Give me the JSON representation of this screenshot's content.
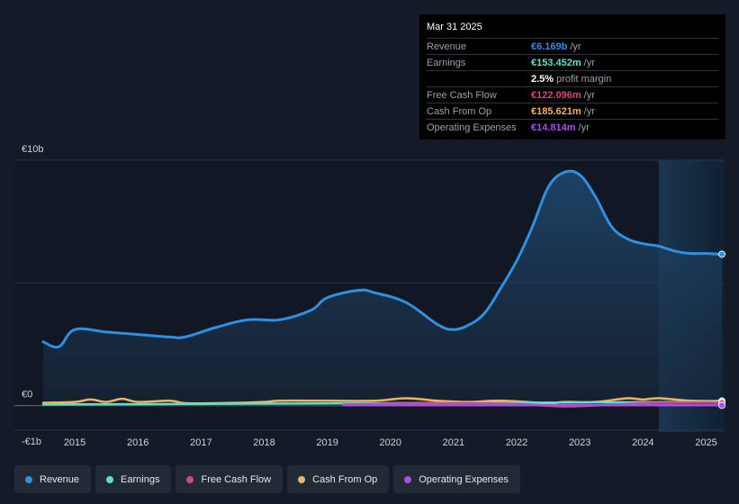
{
  "tooltip": {
    "date": "Mar 31 2025",
    "rows": [
      {
        "label": "Revenue",
        "value": "€6.169b",
        "unit": "/yr",
        "color": "#2e8fe3"
      },
      {
        "label": "Earnings",
        "value": "€153.452m",
        "unit": "/yr",
        "color": "#5fe0c8"
      },
      {
        "label": "",
        "value": "2.5%",
        "unit": "profit margin",
        "color": "#ffffff"
      },
      {
        "label": "Free Cash Flow",
        "value": "€122.096m",
        "unit": "/yr",
        "color": "#d3497a"
      },
      {
        "label": "Cash From Op",
        "value": "€185.621m",
        "unit": "/yr",
        "color": "#f0b35e"
      },
      {
        "label": "Operating Expenses",
        "value": "€14.814m",
        "unit": "/yr",
        "color": "#a64ef0"
      }
    ]
  },
  "legend": [
    {
      "label": "Revenue",
      "color": "#2e8fe3"
    },
    {
      "label": "Earnings",
      "color": "#5fe0c8"
    },
    {
      "label": "Free Cash Flow",
      "color": "#d3497a"
    },
    {
      "label": "Cash From Op",
      "color": "#f0b35e"
    },
    {
      "label": "Operating Expenses",
      "color": "#a64ef0"
    }
  ],
  "chart_data": {
    "type": "area",
    "y_ticks": [
      {
        "value": 10,
        "label": "€10b"
      },
      {
        "value": 0,
        "label": "€0"
      },
      {
        "value": -1,
        "label": "-€1b"
      }
    ],
    "ylim": [
      -1,
      10
    ],
    "xlim": [
      2014.5,
      2025.25
    ],
    "x_ticks": [
      "2015",
      "2016",
      "2017",
      "2018",
      "2019",
      "2020",
      "2021",
      "2022",
      "2023",
      "2024",
      "2025"
    ],
    "forecast_start": 2024.25,
    "series": [
      {
        "name": "Revenue",
        "color": "#2e8fe3",
        "unit": "€b",
        "x": [
          2014.5,
          2014.75,
          2015.0,
          2015.5,
          2016.0,
          2016.5,
          2016.75,
          2017.25,
          2017.75,
          2018.25,
          2018.75,
          2019.0,
          2019.5,
          2019.75,
          2020.25,
          2020.75,
          2021.0,
          2021.25,
          2021.5,
          2021.75,
          2022.0,
          2022.25,
          2022.5,
          2022.75,
          2023.0,
          2023.25,
          2023.5,
          2023.75,
          2024.0,
          2024.25,
          2024.5,
          2024.75,
          2025.0,
          2025.25
        ],
        "values": [
          2.6,
          2.4,
          3.1,
          3.0,
          2.9,
          2.8,
          2.8,
          3.2,
          3.5,
          3.5,
          3.9,
          4.4,
          4.7,
          4.6,
          4.2,
          3.3,
          3.1,
          3.3,
          3.8,
          4.8,
          5.9,
          7.3,
          8.9,
          9.5,
          9.4,
          8.5,
          7.3,
          6.8,
          6.6,
          6.5,
          6.3,
          6.2,
          6.2,
          6.17
        ]
      },
      {
        "name": "Earnings",
        "color": "#5fe0c8",
        "unit": "€b",
        "x": [
          2014.5,
          2016.0,
          2018.0,
          2020.0,
          2022.0,
          2024.0,
          2025.25
        ],
        "values": [
          0.05,
          0.06,
          0.08,
          0.1,
          0.12,
          0.14,
          0.15
        ]
      },
      {
        "name": "Free Cash Flow",
        "color": "#d3497a",
        "unit": "€b",
        "x": [
          2019.25,
          2020.0,
          2021.0,
          2022.0,
          2022.75,
          2023.5,
          2024.25,
          2025.25
        ],
        "values": [
          0.05,
          0.08,
          0.1,
          0.07,
          -0.03,
          0.04,
          0.12,
          0.12
        ]
      },
      {
        "name": "Cash From Op",
        "color": "#f0b35e",
        "unit": "€b",
        "x": [
          2014.5,
          2015.0,
          2015.25,
          2015.5,
          2015.75,
          2016.0,
          2016.5,
          2016.75,
          2017.25,
          2018.0,
          2018.25,
          2019.0,
          2019.75,
          2020.25,
          2020.75,
          2021.25,
          2021.75,
          2022.5,
          2022.75,
          2023.25,
          2023.75,
          2024.0,
          2024.25,
          2024.75,
          2025.25
        ],
        "values": [
          0.12,
          0.15,
          0.25,
          0.15,
          0.28,
          0.15,
          0.2,
          0.1,
          0.1,
          0.15,
          0.2,
          0.2,
          0.2,
          0.3,
          0.2,
          0.15,
          0.2,
          0.1,
          0.15,
          0.15,
          0.3,
          0.25,
          0.3,
          0.2,
          0.19
        ]
      },
      {
        "name": "Operating Expenses",
        "color": "#a64ef0",
        "unit": "€b",
        "x": [
          2019.25,
          2020.0,
          2021.0,
          2022.0,
          2023.0,
          2024.0,
          2025.25
        ],
        "values": [
          0.02,
          0.02,
          0.02,
          0.02,
          0.02,
          0.02,
          0.015
        ]
      }
    ]
  }
}
